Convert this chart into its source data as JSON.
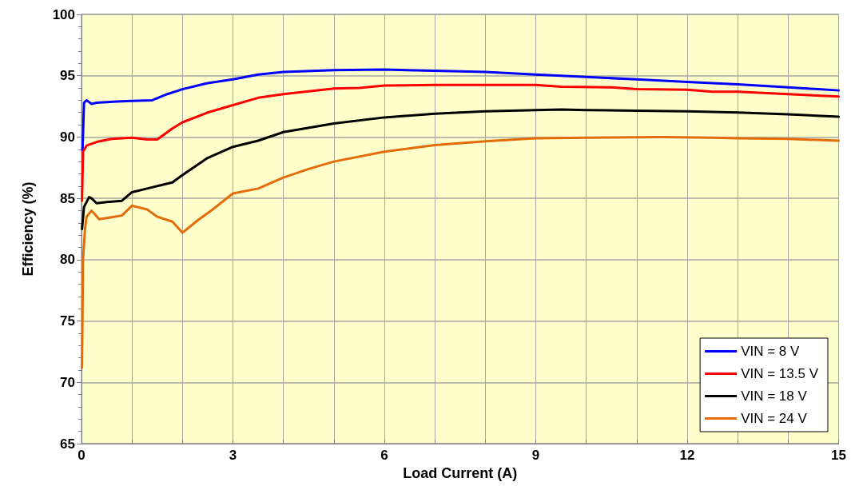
{
  "chart_data": {
    "type": "line",
    "xlabel": "Load Current (A)",
    "ylabel": "Efficiency (%)",
    "xlim": [
      0,
      15
    ],
    "ylim": [
      65,
      100
    ],
    "xticks": [
      0,
      {
        "value": 1,
        "label": null
      },
      {
        "value": 2,
        "label": null
      },
      3,
      {
        "value": 4,
        "label": null
      },
      {
        "value": 5,
        "label": null
      },
      6,
      {
        "value": 7,
        "label": null
      },
      {
        "value": 8,
        "label": null
      },
      9,
      {
        "value": 10,
        "label": null
      },
      {
        "value": 11,
        "label": null
      },
      12,
      {
        "value": 13,
        "label": null
      },
      {
        "value": 14,
        "label": null
      },
      15
    ],
    "yticks": [
      65,
      70,
      75,
      80,
      85,
      90,
      95,
      100
    ],
    "grid": true,
    "legend": "bottom right",
    "marker": "none",
    "line_style": "solid",
    "series": [
      {
        "name": "VIN = 8 V",
        "color": "#0000ff",
        "x": [
          0.02,
          0.05,
          0.1,
          0.2,
          0.3,
          0.7,
          1.0,
          1.4,
          1.7,
          2,
          2.5,
          3,
          3.5,
          4,
          5,
          6,
          7,
          8,
          9,
          10,
          11,
          12,
          13,
          14,
          15
        ],
        "values": [
          88.9,
          92.8,
          93.0,
          92.7,
          92.8,
          92.9,
          92.95,
          93.0,
          93.5,
          93.9,
          94.4,
          94.7,
          95.1,
          95.3,
          95.45,
          95.5,
          95.4,
          95.3,
          95.1,
          94.9,
          94.7,
          94.5,
          94.3,
          94.05,
          93.8
        ]
      },
      {
        "name": "VIN = 13.5 V",
        "color": "#ff0000",
        "x": [
          0.01,
          0.03,
          0.1,
          0.3,
          0.6,
          1.0,
          1.3,
          1.5,
          1.8,
          2,
          2.5,
          3,
          3.5,
          4,
          5,
          5.5,
          6,
          7,
          9,
          9.5,
          10.5,
          11,
          12,
          12.5,
          13,
          14,
          15
        ],
        "values": [
          84.8,
          88.8,
          89.3,
          89.6,
          89.85,
          89.95,
          89.8,
          89.8,
          90.7,
          91.2,
          92.0,
          92.6,
          93.2,
          93.5,
          93.95,
          94.0,
          94.2,
          94.25,
          94.25,
          94.1,
          94.05,
          93.9,
          93.85,
          93.7,
          93.7,
          93.5,
          93.3
        ]
      },
      {
        "name": "VIN = 18 V",
        "color": "#000000",
        "x": [
          0.01,
          0.05,
          0.15,
          0.2,
          0.3,
          0.5,
          0.8,
          1,
          1.3,
          1.6,
          1.8,
          2,
          2.5,
          3,
          3.5,
          4,
          5,
          6,
          7,
          8,
          9,
          9.5,
          10,
          11,
          12,
          13,
          14,
          15
        ],
        "values": [
          82.5,
          84.3,
          85.1,
          85.0,
          84.6,
          84.7,
          84.8,
          85.5,
          85.8,
          86.1,
          86.3,
          86.9,
          88.3,
          89.2,
          89.7,
          90.4,
          91.1,
          91.6,
          91.9,
          92.1,
          92.2,
          92.25,
          92.2,
          92.15,
          92.1,
          92.0,
          91.85,
          91.65
        ]
      },
      {
        "name": "VIN = 24 V",
        "color": "#e46c0a",
        "x": [
          0.01,
          0.03,
          0.07,
          0.1,
          0.2,
          0.35,
          0.5,
          0.8,
          1.0,
          1.3,
          1.5,
          1.8,
          2.0,
          2.3,
          2.6,
          3,
          3.5,
          4,
          4.5,
          5,
          6,
          7,
          8,
          9,
          10,
          11.5,
          12.5,
          13,
          14,
          15
        ],
        "values": [
          71.2,
          80,
          82.5,
          83.5,
          84.0,
          83.3,
          83.4,
          83.6,
          84.4,
          84.1,
          83.5,
          83.1,
          82.2,
          83.2,
          84.1,
          85.4,
          85.8,
          86.7,
          87.4,
          88.0,
          88.8,
          89.35,
          89.65,
          89.9,
          89.95,
          90.0,
          89.95,
          89.9,
          89.85,
          89.7
        ]
      }
    ]
  }
}
